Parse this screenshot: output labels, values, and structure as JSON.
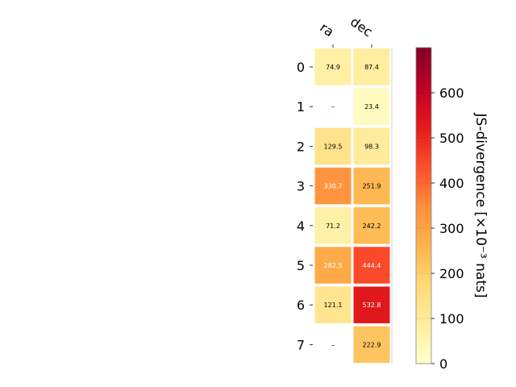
{
  "chart_data": {
    "type": "heatmap",
    "columns": [
      "ra",
      "dec"
    ],
    "rows": [
      "0",
      "1",
      "2",
      "3",
      "4",
      "5",
      "6",
      "7"
    ],
    "values": [
      [
        74.9,
        87.4
      ],
      [
        null,
        23.4
      ],
      [
        129.5,
        98.3
      ],
      [
        330.7,
        251.9
      ],
      [
        71.2,
        242.2
      ],
      [
        282.5,
        444.4
      ],
      [
        121.1,
        532.8
      ],
      [
        null,
        222.9
      ]
    ],
    "cell_labels": [
      [
        "74.9",
        "87.4"
      ],
      [
        "–",
        "23.4"
      ],
      [
        "129.5",
        "98.3"
      ],
      [
        "330.7",
        "251.9"
      ],
      [
        "71.2",
        "242.2"
      ],
      [
        "282.5",
        "444.4"
      ],
      [
        "121.1",
        "532.8"
      ],
      [
        "–",
        "222.9"
      ]
    ],
    "colorbar": {
      "label": "JS-divergence [×10⁻³ nats]",
      "range": [
        0,
        700
      ],
      "ticks": [
        "0",
        "100",
        "200",
        "300",
        "400",
        "500",
        "600"
      ],
      "colormap": "YlOrRd"
    },
    "grid": false
  }
}
